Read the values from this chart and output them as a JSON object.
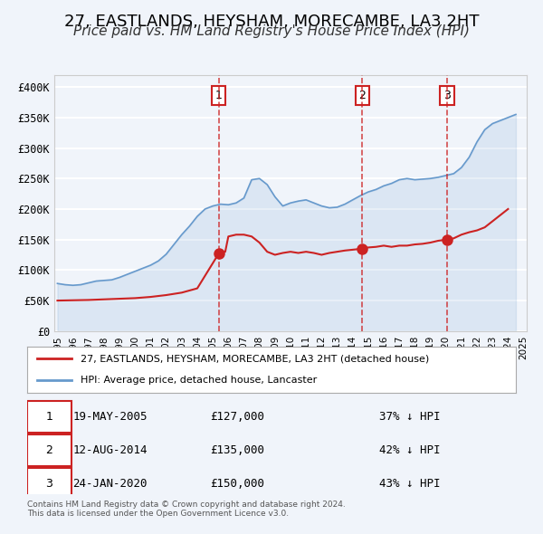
{
  "title": "27, EASTLANDS, HEYSHAM, MORECAMBE, LA3 2HT",
  "subtitle": "Price paid vs. HM Land Registry's House Price Index (HPI)",
  "title_fontsize": 13,
  "subtitle_fontsize": 11,
  "bg_color": "#f0f4fa",
  "plot_bg_color": "#f0f4fa",
  "grid_color": "#ffffff",
  "hpi_color": "#6699cc",
  "price_color": "#cc2222",
  "marker_color": "#cc2222",
  "ylim": [
    0,
    420000
  ],
  "yticks": [
    0,
    50000,
    100000,
    150000,
    200000,
    250000,
    300000,
    350000,
    400000
  ],
  "ytick_labels": [
    "£0",
    "£50K",
    "£100K",
    "£150K",
    "£200K",
    "£250K",
    "£300K",
    "£350K",
    "£400K"
  ],
  "sale_markers": [
    {
      "year": 2005.38,
      "price": 127000,
      "label": "1"
    },
    {
      "year": 2014.62,
      "price": 135000,
      "label": "2"
    },
    {
      "year": 2020.07,
      "price": 150000,
      "label": "3"
    }
  ],
  "vline_years": [
    2005.38,
    2014.62,
    2020.07
  ],
  "table_rows": [
    {
      "num": "1",
      "date": "19-MAY-2005",
      "price": "£127,000",
      "hpi": "37% ↓ HPI"
    },
    {
      "num": "2",
      "date": "12-AUG-2014",
      "price": "£135,000",
      "hpi": "42% ↓ HPI"
    },
    {
      "num": "3",
      "date": "24-JAN-2020",
      "price": "£150,000",
      "hpi": "43% ↓ HPI"
    }
  ],
  "legend_line1": "27, EASTLANDS, HEYSHAM, MORECAMBE, LA3 2HT (detached house)",
  "legend_line2": "HPI: Average price, detached house, Lancaster",
  "footer1": "Contains HM Land Registry data © Crown copyright and database right 2024.",
  "footer2": "This data is licensed under the Open Government Licence v3.0.",
  "hpi_data": {
    "years": [
      1995,
      1995.5,
      1996,
      1996.5,
      1997,
      1997.5,
      1998,
      1998.5,
      1999,
      1999.5,
      2000,
      2000.5,
      2001,
      2001.5,
      2002,
      2002.5,
      2003,
      2003.5,
      2004,
      2004.5,
      2005,
      2005.5,
      2006,
      2006.5,
      2007,
      2007.5,
      2008,
      2008.5,
      2009,
      2009.5,
      2010,
      2010.5,
      2011,
      2011.5,
      2012,
      2012.5,
      2013,
      2013.5,
      2014,
      2014.5,
      2015,
      2015.5,
      2016,
      2016.5,
      2017,
      2017.5,
      2018,
      2018.5,
      2019,
      2019.5,
      2020,
      2020.5,
      2021,
      2021.5,
      2022,
      2022.5,
      2023,
      2023.5,
      2024,
      2024.5
    ],
    "values": [
      78000,
      76000,
      75000,
      76000,
      79000,
      82000,
      83000,
      84000,
      88000,
      93000,
      98000,
      103000,
      108000,
      115000,
      126000,
      142000,
      158000,
      172000,
      188000,
      200000,
      205000,
      208000,
      207000,
      210000,
      218000,
      248000,
      250000,
      240000,
      220000,
      205000,
      210000,
      213000,
      215000,
      210000,
      205000,
      202000,
      203000,
      208000,
      215000,
      222000,
      228000,
      232000,
      238000,
      242000,
      248000,
      250000,
      248000,
      249000,
      250000,
      252000,
      255000,
      258000,
      268000,
      285000,
      310000,
      330000,
      340000,
      345000,
      350000,
      355000
    ]
  },
  "price_data": {
    "years": [
      1995,
      1996,
      1997,
      1998,
      1999,
      2000,
      2001,
      2002,
      2003,
      2004,
      2005.38,
      2005.8,
      2006,
      2006.5,
      2007,
      2007.5,
      2008,
      2008.5,
      2009,
      2009.5,
      2010,
      2010.5,
      2011,
      2011.5,
      2012,
      2012.5,
      2013,
      2013.5,
      2014.62,
      2015,
      2015.5,
      2016,
      2016.5,
      2017,
      2017.5,
      2018,
      2018.5,
      2019,
      2019.5,
      2020.07,
      2020.5,
      2021,
      2021.5,
      2022,
      2022.5,
      2023,
      2023.5,
      2024
    ],
    "values": [
      50000,
      50500,
      51000,
      52000,
      53000,
      54000,
      56000,
      59000,
      63000,
      70000,
      127000,
      130000,
      155000,
      158000,
      158000,
      155000,
      145000,
      130000,
      125000,
      128000,
      130000,
      128000,
      130000,
      128000,
      125000,
      128000,
      130000,
      132000,
      135000,
      137000,
      138000,
      140000,
      138000,
      140000,
      140000,
      142000,
      143000,
      145000,
      148000,
      150000,
      152000,
      158000,
      162000,
      165000,
      170000,
      180000,
      190000,
      200000
    ]
  }
}
